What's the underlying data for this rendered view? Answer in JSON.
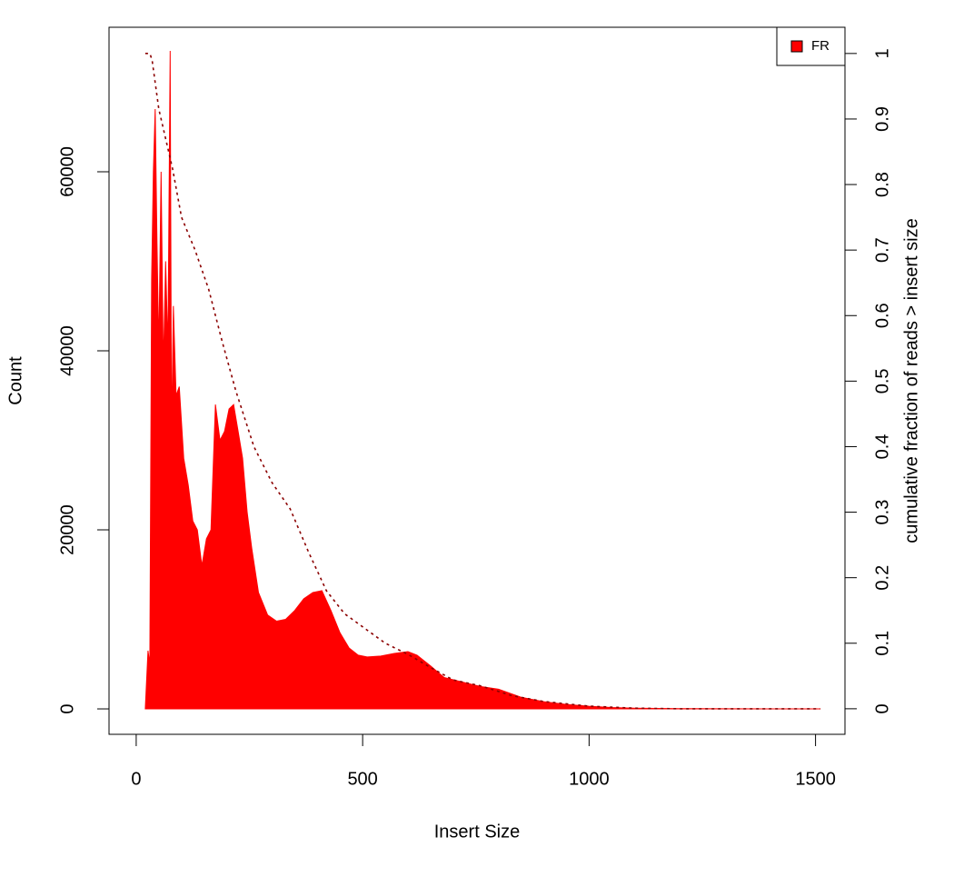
{
  "chart_data": {
    "type": "area",
    "x_label": "Insert Size",
    "y_label": "Count",
    "y2_label": "cumulative fraction of reads > insert size",
    "x": [
      20,
      26,
      30,
      34,
      38,
      42,
      46,
      50,
      55,
      60,
      65,
      70,
      75,
      78,
      82,
      88,
      95,
      105,
      115,
      125,
      135,
      145,
      155,
      165,
      175,
      185,
      195,
      205,
      215,
      225,
      235,
      245,
      255,
      270,
      290,
      310,
      330,
      350,
      370,
      390,
      410,
      430,
      450,
      470,
      490,
      510,
      540,
      570,
      600,
      620,
      650,
      680,
      720,
      760,
      800,
      850,
      900,
      950,
      1000,
      1050,
      1100,
      1200,
      1300,
      1400,
      1510
    ],
    "series": [
      {
        "name": "FR",
        "color": "#ff0000",
        "values": [
          0,
          6500,
          5000,
          48000,
          60000,
          67000,
          52000,
          40000,
          60000,
          38000,
          50000,
          40000,
          73500,
          30000,
          45000,
          35000,
          36000,
          28000,
          25000,
          21000,
          20000,
          16000,
          19000,
          20000,
          34000,
          30000,
          31000,
          33500,
          34000,
          31000,
          28000,
          22000,
          18000,
          13000,
          10500,
          9800,
          10000,
          11000,
          12300,
          13000,
          13200,
          11000,
          8500,
          6800,
          6000,
          5800,
          5900,
          6200,
          6400,
          6000,
          4800,
          3500,
          3000,
          2500,
          2200,
          1300,
          800,
          500,
          300,
          150,
          80,
          30,
          10,
          5,
          0
        ]
      },
      {
        "color": "#8b0000",
        "axis": "y2",
        "dashed": true,
        "x": [
          20,
          30,
          35,
          50,
          80,
          100,
          130,
          160,
          190,
          220,
          260,
          300,
          340,
          380,
          420,
          460,
          500,
          550,
          600,
          650,
          700,
          760,
          830,
          900,
          1000,
          1100,
          1200,
          1510
        ],
        "values": [
          1,
          1,
          0.99,
          0.915,
          0.825,
          0.75,
          0.7,
          0.64,
          0.56,
          0.485,
          0.4,
          0.345,
          0.305,
          0.24,
          0.18,
          0.145,
          0.125,
          0.1,
          0.083,
          0.063,
          0.044,
          0.035,
          0.02,
          0.011,
          0.004,
          0.001,
          0,
          0
        ]
      }
    ],
    "xlim": [
      -60,
      1565
    ],
    "xticks": [
      0,
      500,
      1000,
      1500
    ],
    "ylim": [
      -2840,
      76140
    ],
    "yticks": [
      0,
      20000,
      40000,
      60000
    ],
    "y2lim": [
      -0.039,
      1.04
    ],
    "y2ticks": [
      0,
      0.1,
      0.2,
      0.3,
      0.4,
      0.5,
      0.6,
      0.7,
      0.8,
      0.9,
      1
    ],
    "legend": "top-right"
  }
}
